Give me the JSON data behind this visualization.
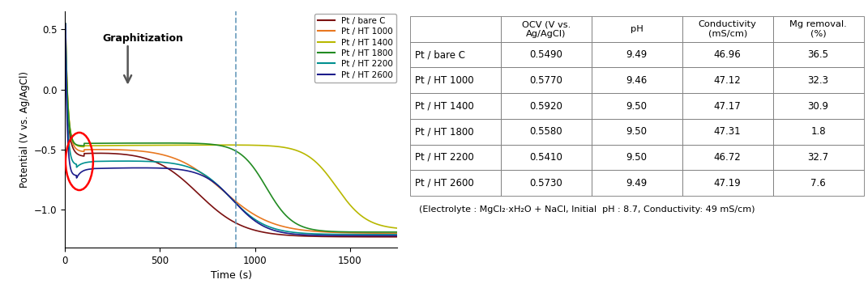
{
  "series": [
    {
      "label": "Pt / bare C",
      "color": "#7B1010"
    },
    {
      "label": "Pt / HT 1000",
      "color": "#E87820"
    },
    {
      "label": "Pt / HT 1400",
      "color": "#B8B800"
    },
    {
      "label": "Pt / HT 1800",
      "color": "#228B22"
    },
    {
      "label": "Pt / HT 2200",
      "color": "#009090"
    },
    {
      "label": "Pt / HT 2600",
      "color": "#1C1C8B"
    }
  ],
  "col_headers": [
    "",
    "OCV (V vs.\nAg/AgCl)",
    "pH",
    "Conductivity\n(mS/cm)",
    "Mg removal.\n(%)"
  ],
  "row_data": [
    [
      "Pt / bare C",
      "0.5490",
      "9.49",
      "46.96",
      "36.5"
    ],
    [
      "Pt / HT 1000",
      "0.5770",
      "9.46",
      "47.12",
      "32.3"
    ],
    [
      "Pt / HT 1400",
      "0.5920",
      "9.50",
      "47.17",
      "30.9"
    ],
    [
      "Pt / HT 1800",
      "0.5580",
      "9.50",
      "47.31",
      "1.8"
    ],
    [
      "Pt / HT 2200",
      "0.5410",
      "9.50",
      "46.72",
      "32.7"
    ],
    [
      "Pt / HT 2600",
      "0.5730",
      "9.49",
      "47.19",
      "7.6"
    ]
  ],
  "footnote": "(Electrolyte : MgCl₂·xH₂O + NaCl, Initial  pH : 8.7, Conductivity: 49 mS/cm)",
  "dashed_line_x": 900,
  "xlim": [
    0,
    1750
  ],
  "ylim": [
    -1.32,
    0.65
  ],
  "xlabel": "Time (s)",
  "ylabel": "Potential (V vs. Ag/AgCl)",
  "yticks": [
    0.5,
    0.0,
    -0.5,
    -1.0
  ],
  "xticks": [
    0,
    500,
    1000,
    1500
  ]
}
